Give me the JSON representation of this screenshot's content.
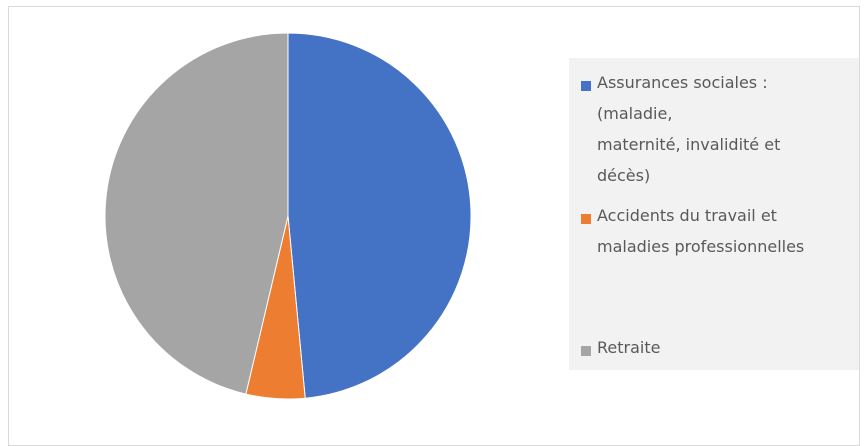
{
  "chart_data": {
    "type": "pie",
    "title": "",
    "categories": [
      "Assurances sociales :\n(maladie,\nmaternité, invalidité et\ndécès)",
      "Accidents du travail et\nmaladies professionnelles",
      "Retraite"
    ],
    "values": [
      48.5,
      5.2,
      46.3
    ],
    "colors": [
      "#4472c4",
      "#ed7d31",
      "#a5a5a5"
    ],
    "legend_position": "right",
    "start_angle_deg": 0,
    "direction": "clockwise"
  }
}
